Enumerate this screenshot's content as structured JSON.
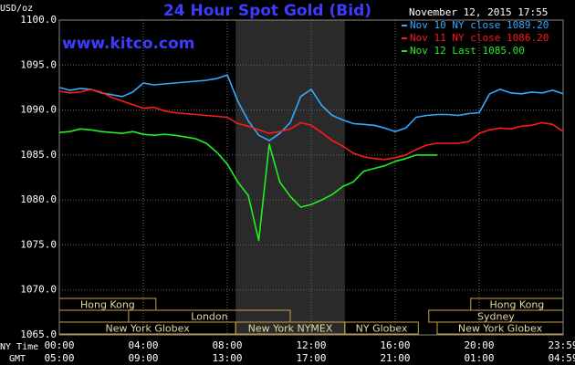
{
  "chart_data": {
    "type": "line",
    "title": "24 Hour Spot Gold (Bid)",
    "source": "www.kitco.com",
    "timestamp": "November 12, 2015 17:55",
    "ylabel": "USD/oz",
    "xlabel": "NY Time",
    "x2label": "GMT",
    "x": [
      0,
      0.5,
      1,
      1.5,
      2,
      2.5,
      3,
      3.5,
      4,
      4.5,
      5,
      5.5,
      6,
      6.5,
      7,
      7.5,
      8,
      8.5,
      9,
      9.5,
      10,
      10.5,
      11,
      11.5,
      12,
      12.5,
      13,
      13.5,
      14,
      14.5,
      15,
      15.5,
      16,
      16.5,
      17,
      17.5,
      18,
      18.5,
      19,
      19.5,
      20,
      20.5,
      21,
      21.5,
      22,
      22.5,
      23,
      23.5,
      24
    ],
    "series": [
      {
        "name": "Nov 10 NY close 1089.20",
        "color": "#33aaff",
        "values": [
          1092.5,
          1092.2,
          1092.4,
          1092.3,
          1091.9,
          1091.7,
          1091.5,
          1092.0,
          1093.0,
          1092.8,
          1092.9,
          1093.0,
          1093.1,
          1093.2,
          1093.3,
          1093.5,
          1093.9,
          1091.0,
          1088.8,
          1087.2,
          1086.6,
          1087.4,
          1088.6,
          1091.5,
          1092.3,
          1090.5,
          1089.4,
          1088.9,
          1088.5,
          1088.4,
          1088.3,
          1088.0,
          1087.6,
          1088.0,
          1089.2,
          1089.4,
          1089.5,
          1089.5,
          1089.4,
          1089.6,
          1089.7,
          1091.8,
          1092.3,
          1091.9,
          1091.8,
          1092.0,
          1091.9,
          1092.2,
          1091.8
        ]
      },
      {
        "name": "Nov 11 NY close 1086.20",
        "color": "#ff1a1a",
        "values": [
          1092.1,
          1091.9,
          1092.0,
          1092.3,
          1092.0,
          1091.4,
          1091.0,
          1090.6,
          1090.2,
          1090.3,
          1089.9,
          1089.7,
          1089.6,
          1089.5,
          1089.4,
          1089.3,
          1089.2,
          1088.5,
          1088.2,
          1087.8,
          1087.4,
          1087.6,
          1087.9,
          1088.6,
          1088.3,
          1087.5,
          1086.6,
          1086.0,
          1085.2,
          1084.8,
          1084.6,
          1084.5,
          1084.7,
          1085.0,
          1085.6,
          1086.1,
          1086.3,
          1086.3,
          1086.3,
          1086.5,
          1087.4,
          1087.8,
          1088.0,
          1087.9,
          1088.2,
          1088.3,
          1088.6,
          1088.4,
          1087.6
        ]
      },
      {
        "name": "Nov 12 Last 1085.00",
        "color": "#22ee22",
        "values": [
          1087.5,
          1087.6,
          1087.9,
          1087.8,
          1087.6,
          1087.5,
          1087.4,
          1087.6,
          1087.3,
          1087.2,
          1087.3,
          1087.2,
          1087.0,
          1086.8,
          1086.3,
          1085.3,
          1084.0,
          1082.0,
          1080.5,
          1075.5,
          1086.2,
          1082.0,
          1080.4,
          1079.2,
          1079.5,
          1080.0,
          1080.6,
          1081.5,
          1082.0,
          1083.2,
          1083.5,
          1083.8,
          1084.3,
          1084.6,
          1085.0,
          1085.0,
          1085.0,
          null,
          null,
          null,
          null,
          null,
          null,
          null,
          null,
          null,
          null,
          null,
          null
        ]
      }
    ],
    "xlim": [
      0,
      24
    ],
    "ylim": [
      1065,
      1100
    ],
    "yticks": [
      {
        "value": 1100,
        "label": "1100.0"
      },
      {
        "value": 1095,
        "label": "1095.0"
      },
      {
        "value": 1090,
        "label": "1090.0"
      },
      {
        "value": 1085,
        "label": "1085.0"
      },
      {
        "value": 1080,
        "label": "1080.0"
      },
      {
        "value": 1075,
        "label": "1075.0"
      },
      {
        "value": 1070,
        "label": "1070.0"
      },
      {
        "value": 1065,
        "label": "1065.0"
      }
    ],
    "xticks": [
      {
        "value": 0,
        "label": "00:00"
      },
      {
        "value": 4,
        "label": "04:00"
      },
      {
        "value": 8,
        "label": "08:00"
      },
      {
        "value": 12,
        "label": "12:00"
      },
      {
        "value": 16,
        "label": "16:00"
      },
      {
        "value": 20,
        "label": "20:00"
      },
      {
        "value": 24,
        "label": "23:59"
      }
    ],
    "x2ticklabels": [
      "05:00",
      "09:00",
      "13:00",
      "17:00",
      "21:00",
      "01:00",
      "04:59"
    ],
    "shaded_span": [
      8.4,
      13.6
    ],
    "shaded_color": "#2a2a2a",
    "session_color": "#c8a040",
    "session_rows": [
      [
        {
          "label": "Hong Kong",
          "start": 0,
          "end": 4.6
        },
        {
          "label": "Hong Kong",
          "start": 19.6,
          "end": 24
        }
      ],
      [
        {
          "label": "London",
          "start": 3.3,
          "end": 11.0
        },
        {
          "label": "Sydney",
          "start": 17.6,
          "end": 24
        }
      ],
      [
        {
          "label": "New York Globex",
          "start": 0,
          "end": 8.4
        },
        {
          "label": "New York NYMEX",
          "start": 8.4,
          "end": 13.6
        },
        {
          "label": "NY Globex",
          "start": 13.6,
          "end": 17.1
        },
        {
          "label": "New York Globex",
          "start": 18.0,
          "end": 24
        }
      ]
    ],
    "grid": true
  }
}
